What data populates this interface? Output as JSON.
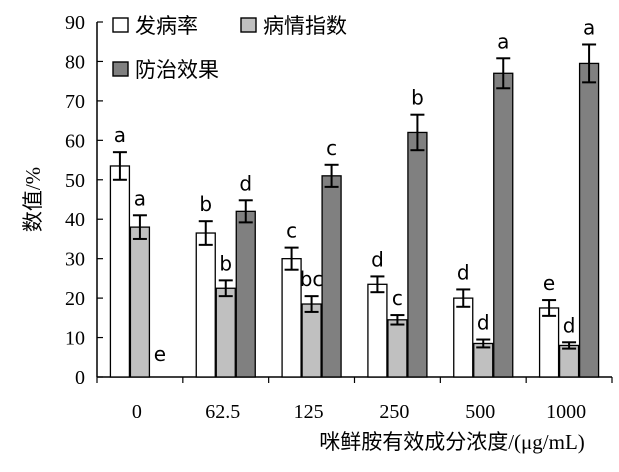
{
  "chart_data": {
    "type": "bar",
    "xlabel": "咪鲜胺有效成分浓度/(μg/mL)",
    "ylabel": "数值/%",
    "ylim": [
      0,
      90
    ],
    "yticks": [
      0,
      10,
      20,
      30,
      40,
      50,
      60,
      70,
      80,
      90
    ],
    "categories": [
      "0",
      "62.5",
      "125",
      "250",
      "500",
      "1000"
    ],
    "legend_position": "top-left",
    "series": [
      {
        "name": "发病率",
        "color": "#ffffff",
        "values": [
          53.5,
          36.5,
          30.0,
          23.5,
          20.0,
          17.5
        ],
        "errors": [
          3.5,
          3.0,
          2.8,
          2.0,
          2.2,
          2.0
        ],
        "letters": [
          "a",
          "b",
          "c",
          "d",
          "d",
          "e"
        ]
      },
      {
        "name": "病情指数",
        "color": "#c0c0c0",
        "values": [
          38.0,
          22.5,
          18.5,
          14.5,
          8.5,
          8.0
        ],
        "errors": [
          3.0,
          2.0,
          2.0,
          1.2,
          1.0,
          0.8
        ],
        "letters": [
          "a",
          "b",
          "bc",
          "c",
          "d",
          "d"
        ]
      },
      {
        "name": "防治效果",
        "color": "#808080",
        "values": [
          0,
          42.0,
          51.0,
          62.0,
          77.0,
          79.5
        ],
        "errors": [
          0,
          2.8,
          2.8,
          4.5,
          3.8,
          4.8
        ],
        "letters": [
          "e",
          "d",
          "c",
          "b",
          "a",
          "a"
        ]
      }
    ]
  }
}
